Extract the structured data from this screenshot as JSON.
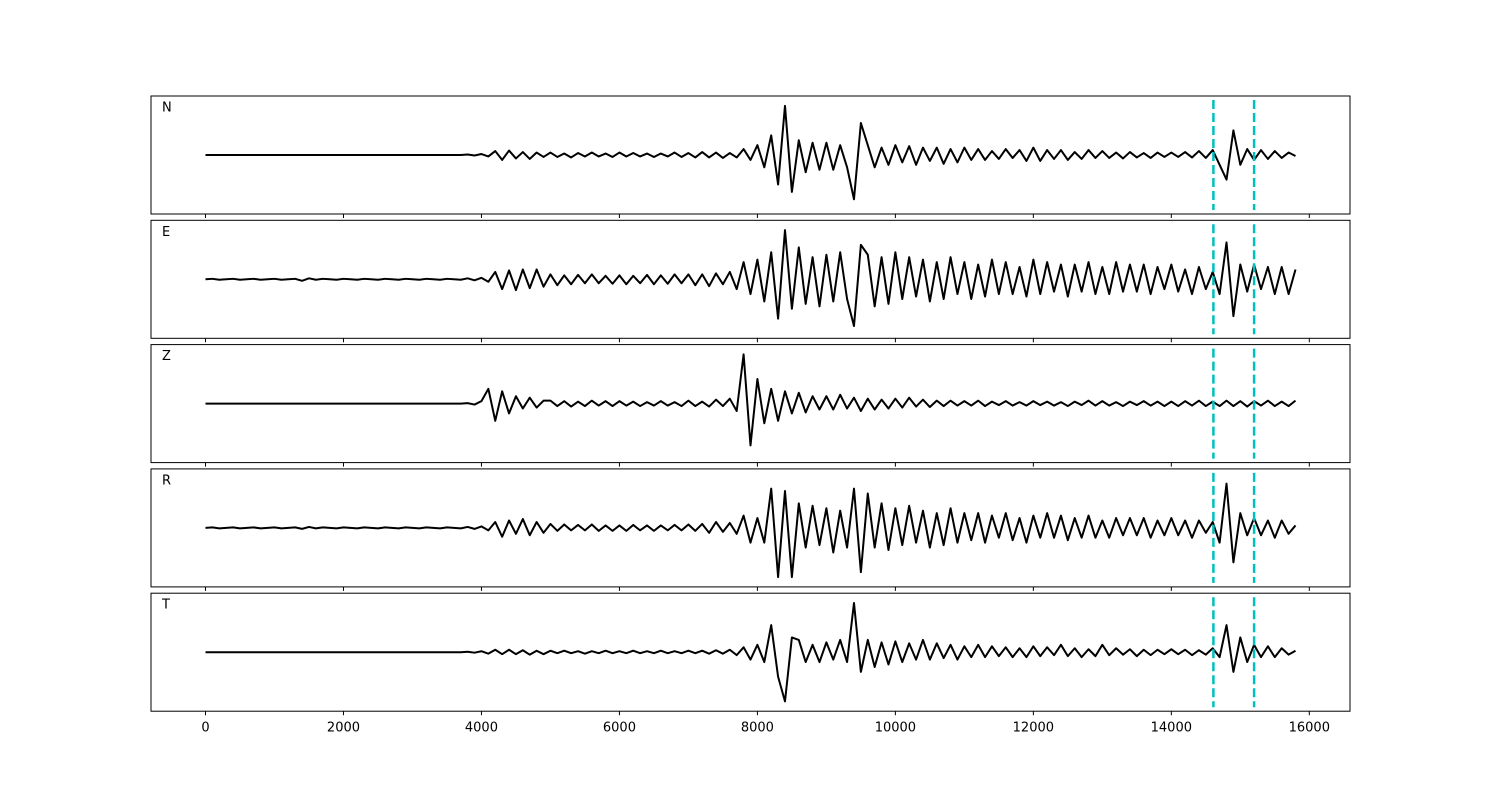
{
  "chart_data": {
    "type": "line",
    "subplots": true,
    "x": [
      0,
      100,
      200,
      300,
      400,
      500,
      600,
      700,
      800,
      900,
      1000,
      1100,
      1200,
      1300,
      1400,
      1500,
      1600,
      1700,
      1800,
      1900,
      2000,
      2100,
      2200,
      2300,
      2400,
      2500,
      2600,
      2700,
      2800,
      2900,
      3000,
      3100,
      3200,
      3300,
      3400,
      3500,
      3600,
      3700,
      3800,
      3900,
      4000,
      4100,
      4200,
      4300,
      4400,
      4500,
      4600,
      4700,
      4800,
      4900,
      5000,
      5100,
      5200,
      5300,
      5400,
      5500,
      5600,
      5700,
      5800,
      5900,
      6000,
      6100,
      6200,
      6300,
      6400,
      6500,
      6600,
      6700,
      6800,
      6900,
      7000,
      7100,
      7200,
      7300,
      7400,
      7500,
      7600,
      7700,
      7800,
      7900,
      8000,
      8100,
      8200,
      8300,
      8400,
      8500,
      8600,
      8700,
      8800,
      8900,
      9000,
      9100,
      9200,
      9300,
      9400,
      9500,
      9600,
      9700,
      9800,
      9900,
      10000,
      10100,
      10200,
      10300,
      10400,
      10500,
      10600,
      10700,
      10800,
      10900,
      11000,
      11100,
      11200,
      11300,
      11400,
      11500,
      11600,
      11700,
      11800,
      11900,
      12000,
      12100,
      12200,
      12300,
      12400,
      12500,
      12600,
      12700,
      12800,
      12900,
      13000,
      13100,
      13200,
      13300,
      13400,
      13500,
      13600,
      13700,
      13800,
      13900,
      14000,
      14100,
      14200,
      14300,
      14400,
      14500,
      14600,
      14700,
      14800,
      14900,
      15000,
      15100,
      15200,
      15300,
      15400,
      15500,
      15600,
      15700,
      15800
    ],
    "series": [
      {
        "name": "N",
        "color": "#000000",
        "values": [
          0,
          0,
          0,
          0,
          0,
          0,
          0,
          0,
          0,
          0,
          0,
          0,
          0,
          0,
          0,
          0,
          0,
          0,
          0,
          0,
          0,
          0,
          0,
          0,
          0,
          0,
          0,
          0,
          0,
          0,
          0,
          0,
          0,
          0,
          0,
          0,
          0,
          0,
          0.01,
          -0.01,
          0.02,
          -0.03,
          0.08,
          -0.1,
          0.09,
          -0.07,
          0.06,
          -0.08,
          0.05,
          -0.04,
          0.05,
          -0.04,
          0.03,
          -0.05,
          0.04,
          -0.03,
          0.05,
          -0.03,
          0.03,
          -0.04,
          0.05,
          -0.03,
          0.04,
          -0.03,
          0.03,
          -0.04,
          0.03,
          -0.03,
          0.05,
          -0.04,
          0.04,
          -0.05,
          0.06,
          -0.05,
          0.05,
          -0.06,
          0.04,
          -0.05,
          0.12,
          -0.1,
          0.2,
          -0.25,
          0.4,
          -0.6,
          1.0,
          -0.75,
          0.3,
          -0.35,
          0.25,
          -0.3,
          0.25,
          -0.3,
          0.2,
          -0.25,
          -0.9,
          0.65,
          0.2,
          -0.25,
          0.15,
          -0.2,
          0.2,
          -0.15,
          0.18,
          -0.2,
          0.15,
          -0.12,
          0.15,
          -0.18,
          0.12,
          -0.15,
          0.15,
          -0.1,
          0.12,
          -0.1,
          0.08,
          -0.08,
          0.12,
          -0.06,
          0.1,
          -0.12,
          0.15,
          -0.12,
          0.1,
          -0.08,
          0.1,
          -0.1,
          0.06,
          -0.08,
          0.1,
          -0.06,
          0.08,
          -0.06,
          0.05,
          -0.07,
          0.06,
          -0.05,
          0.04,
          -0.06,
          0.05,
          -0.04,
          0.05,
          -0.04,
          0.06,
          -0.05,
          0.08,
          -0.06,
          0.1,
          -0.2,
          -0.5,
          0.5,
          -0.2,
          0.12,
          -0.1,
          0.1,
          -0.08,
          0.08,
          -0.06,
          0.05,
          -0.02
        ]
      },
      {
        "name": "E",
        "color": "#000000",
        "values": [
          0,
          0.01,
          -0.01,
          0,
          0.01,
          -0.01,
          0,
          0.01,
          -0.01,
          0,
          0.01,
          -0.01,
          0,
          0.01,
          -0.03,
          0.02,
          -0.01,
          0.01,
          0,
          -0.01,
          0.01,
          0,
          -0.01,
          0.01,
          0,
          -0.01,
          0.01,
          0,
          -0.01,
          0.01,
          0,
          -0.01,
          0.01,
          0,
          -0.01,
          0.01,
          0,
          -0.01,
          0.02,
          -0.02,
          0.03,
          -0.05,
          0.15,
          -0.2,
          0.18,
          -0.22,
          0.2,
          -0.18,
          0.2,
          -0.15,
          0.1,
          -0.12,
          0.08,
          -0.1,
          0.09,
          -0.08,
          0.1,
          -0.08,
          0.07,
          -0.09,
          0.08,
          -0.1,
          0.07,
          -0.08,
          0.09,
          -0.1,
          0.08,
          -0.09,
          0.1,
          -0.08,
          0.1,
          -0.12,
          0.1,
          -0.14,
          0.12,
          -0.1,
          0.15,
          -0.2,
          0.35,
          -0.3,
          0.4,
          -0.45,
          0.55,
          -0.8,
          1.0,
          -0.6,
          0.65,
          -0.5,
          0.45,
          -0.55,
          0.5,
          -0.45,
          0.55,
          -0.4,
          -0.95,
          0.7,
          0.5,
          -0.55,
          0.45,
          -0.5,
          0.55,
          -0.4,
          0.45,
          -0.35,
          0.4,
          -0.45,
          0.35,
          -0.4,
          0.45,
          -0.3,
          0.35,
          -0.4,
          0.3,
          -0.35,
          0.4,
          -0.3,
          0.35,
          -0.3,
          0.25,
          -0.35,
          0.4,
          -0.3,
          0.35,
          -0.25,
          0.3,
          -0.35,
          0.3,
          -0.25,
          0.35,
          -0.3,
          0.25,
          -0.3,
          0.35,
          -0.25,
          0.3,
          -0.25,
          0.3,
          -0.3,
          0.25,
          -0.2,
          0.3,
          -0.25,
          0.2,
          -0.3,
          0.25,
          -0.2,
          0.15,
          -0.3,
          0.75,
          -0.75,
          0.3,
          -0.25,
          0.3,
          -0.2,
          0.25,
          -0.3,
          0.25,
          -0.3,
          0.2
        ]
      },
      {
        "name": "Z",
        "color": "#000000",
        "values": [
          0,
          0,
          0,
          0,
          0,
          0,
          0,
          0,
          0,
          0,
          0,
          0,
          0,
          0,
          0,
          0,
          0,
          0,
          0,
          0,
          0,
          0,
          0,
          0,
          0,
          0,
          0,
          0,
          0,
          0,
          0,
          0,
          0,
          0,
          0,
          0,
          0,
          0,
          0.01,
          -0.02,
          0.05,
          0.3,
          -0.35,
          0.25,
          -0.2,
          0.15,
          -0.1,
          0.12,
          -0.08,
          0.06,
          0.06,
          -0.05,
          0.05,
          -0.06,
          0.04,
          -0.05,
          0.06,
          -0.04,
          0.05,
          -0.05,
          0.05,
          -0.04,
          0.04,
          -0.05,
          0.03,
          -0.04,
          0.05,
          -0.04,
          0.03,
          -0.05,
          0.06,
          -0.05,
          0.04,
          -0.06,
          0.08,
          -0.05,
          0.1,
          -0.15,
          1.0,
          -0.85,
          0.5,
          -0.4,
          0.3,
          -0.35,
          0.25,
          -0.2,
          0.22,
          -0.18,
          0.15,
          -0.12,
          0.15,
          -0.12,
          0.18,
          -0.1,
          0.12,
          -0.15,
          0.1,
          -0.12,
          0.08,
          -0.1,
          0.1,
          -0.08,
          0.12,
          -0.06,
          0.08,
          -0.07,
          0.06,
          -0.05,
          0.06,
          -0.04,
          0.05,
          -0.04,
          0.06,
          -0.05,
          0.04,
          -0.03,
          0.05,
          -0.04,
          0.03,
          -0.04,
          0.05,
          -0.03,
          0.04,
          -0.04,
          0.03,
          -0.05,
          0.04,
          -0.03,
          0.06,
          -0.04,
          0.05,
          -0.04,
          0.03,
          -0.05,
          0.04,
          -0.03,
          0.05,
          -0.04,
          0.04,
          -0.05,
          0.04,
          -0.05,
          0.05,
          -0.04,
          0.06,
          -0.05,
          0.04,
          -0.05,
          0.06,
          -0.05,
          0.05,
          -0.06,
          0.05,
          -0.04,
          0.06,
          -0.05,
          0.04,
          -0.05,
          0.06
        ]
      },
      {
        "name": "R",
        "color": "#000000",
        "values": [
          0,
          0.01,
          -0.01,
          0,
          0.01,
          -0.01,
          0,
          0.01,
          -0.01,
          0,
          0.01,
          -0.01,
          0,
          0.01,
          -0.02,
          0.02,
          -0.01,
          0.01,
          0,
          -0.01,
          0.01,
          0,
          -0.01,
          0.01,
          0,
          -0.01,
          0.01,
          0,
          -0.01,
          0.01,
          0,
          -0.01,
          0.01,
          0,
          -0.01,
          0.01,
          0,
          -0.01,
          0.02,
          -0.02,
          0.03,
          -0.05,
          0.12,
          -0.18,
          0.15,
          -0.12,
          0.18,
          -0.15,
          0.12,
          -0.1,
          0.08,
          -0.06,
          0.07,
          -0.05,
          0.06,
          -0.05,
          0.07,
          -0.06,
          0.05,
          -0.06,
          0.05,
          -0.06,
          0.06,
          -0.05,
          0.05,
          -0.06,
          0.05,
          -0.05,
          0.06,
          -0.05,
          0.07,
          -0.06,
          0.08,
          -0.1,
          0.12,
          -0.08,
          0.1,
          -0.12,
          0.25,
          -0.3,
          0.2,
          -0.3,
          0.8,
          -1.0,
          0.75,
          -1.0,
          0.5,
          -0.4,
          0.45,
          -0.35,
          0.4,
          -0.5,
          0.35,
          -0.4,
          0.8,
          -0.9,
          0.7,
          -0.4,
          0.5,
          -0.45,
          0.4,
          -0.35,
          0.45,
          -0.3,
          0.35,
          -0.4,
          0.3,
          -0.35,
          0.4,
          -0.3,
          0.3,
          -0.25,
          0.3,
          -0.3,
          0.25,
          -0.2,
          0.3,
          -0.25,
          0.2,
          -0.3,
          0.25,
          -0.2,
          0.3,
          -0.2,
          0.25,
          -0.25,
          0.2,
          -0.2,
          0.25,
          -0.2,
          0.15,
          -0.2,
          0.2,
          -0.15,
          0.2,
          -0.15,
          0.2,
          -0.2,
          0.15,
          -0.15,
          0.2,
          -0.15,
          0.15,
          -0.2,
          0.15,
          -0.1,
          0.12,
          -0.3,
          0.9,
          -0.7,
          0.3,
          -0.15,
          0.2,
          -0.15,
          0.15,
          -0.2,
          0.15,
          -0.12,
          0.05
        ]
      },
      {
        "name": "T",
        "color": "#000000",
        "values": [
          0,
          0,
          0,
          0,
          0,
          0,
          0,
          0,
          0,
          0,
          0,
          0,
          0,
          0,
          0,
          0,
          0,
          0,
          0,
          0,
          0,
          0,
          0,
          0,
          0,
          0,
          0,
          0,
          0,
          0,
          0,
          0,
          0,
          0,
          0,
          0,
          0,
          0,
          0.01,
          -0.01,
          0.02,
          -0.03,
          0.05,
          -0.04,
          0.05,
          -0.04,
          0.04,
          -0.05,
          0.03,
          -0.04,
          0.03,
          -0.02,
          0.03,
          -0.02,
          0.02,
          -0.03,
          0.02,
          -0.02,
          0.03,
          -0.02,
          0.02,
          -0.02,
          0.03,
          -0.02,
          0.02,
          -0.02,
          0.03,
          -0.02,
          0.02,
          -0.02,
          0.03,
          -0.02,
          0.03,
          -0.03,
          0.04,
          -0.03,
          0.05,
          -0.06,
          0.1,
          -0.15,
          0.15,
          -0.2,
          0.55,
          -0.5,
          -1.0,
          0.3,
          0.25,
          -0.2,
          0.15,
          -0.2,
          0.2,
          -0.15,
          0.25,
          -0.2,
          1.0,
          -0.4,
          0.25,
          -0.3,
          0.2,
          -0.25,
          0.22,
          -0.2,
          0.18,
          -0.15,
          0.25,
          -0.15,
          0.18,
          -0.12,
          0.15,
          -0.15,
          0.12,
          -0.1,
          0.15,
          -0.1,
          0.12,
          -0.08,
          0.1,
          -0.1,
          0.08,
          -0.1,
          0.12,
          -0.08,
          0.1,
          -0.06,
          0.15,
          -0.08,
          0.08,
          -0.1,
          0.06,
          -0.08,
          0.15,
          -0.06,
          0.08,
          -0.05,
          0.06,
          -0.08,
          0.05,
          -0.06,
          0.05,
          -0.04,
          0.06,
          -0.04,
          0.05,
          -0.06,
          0.04,
          -0.05,
          0.08,
          -0.1,
          0.55,
          -0.4,
          0.3,
          -0.2,
          0.15,
          -0.1,
          0.12,
          -0.1,
          0.08,
          -0.05,
          0.03
        ]
      }
    ],
    "xlim": [
      -790,
      16590
    ],
    "xticks": [
      0,
      2000,
      4000,
      6000,
      8000,
      10000,
      12000,
      14000,
      16000
    ],
    "ylim": [
      -1.2,
      1.2
    ],
    "vlines": [
      14610,
      15200
    ],
    "vline_color": "#00bfbf",
    "vline_style": "dashed"
  }
}
